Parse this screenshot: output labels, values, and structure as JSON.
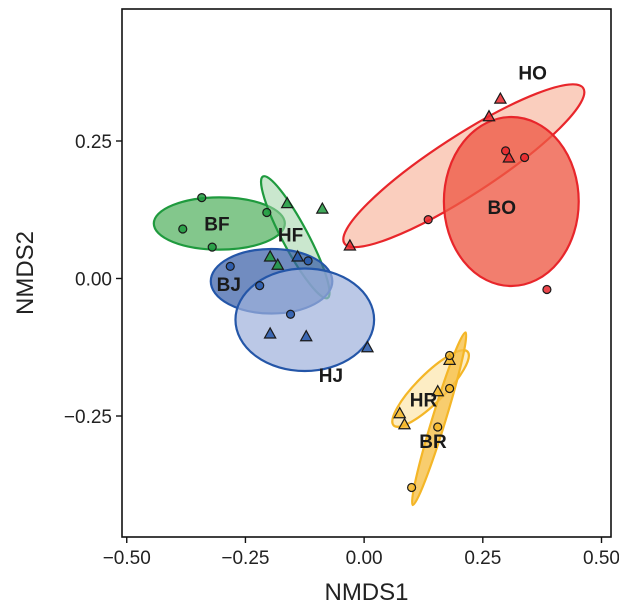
{
  "chart_data": {
    "type": "scatter",
    "xlabel": "NMDS1",
    "ylabel": "NMDS2",
    "xlim": [
      -0.51,
      0.52
    ],
    "ylim": [
      -0.47,
      0.49
    ],
    "x_ticks": [
      -0.5,
      -0.25,
      0.0,
      0.25,
      0.5
    ],
    "x_tick_labels": [
      "−0.50",
      "−0.25",
      "0.00",
      "0.25",
      "0.50"
    ],
    "y_ticks": [
      -0.25,
      0.0,
      0.25
    ],
    "y_tick_labels": [
      "−0.25",
      "0.00",
      "0.25"
    ],
    "grid": false,
    "legend": "none",
    "marker_shapes": {
      "circle": "circle-marker",
      "triangle": "triangle-marker"
    },
    "groups": [
      {
        "id": "BF",
        "label": "BF",
        "fill": "#41a94f",
        "stroke": "#1f9a3e",
        "fill_opacity": 0.65,
        "ellipse": {
          "cx": -0.305,
          "cy": 0.1,
          "rx": 0.138,
          "ry": 0.055,
          "angle_deg": 0
        },
        "label_pos": {
          "x": -0.31,
          "y": 0.1
        },
        "points": [
          {
            "x": -0.342,
            "y": 0.147,
            "shape": "circle"
          },
          {
            "x": -0.382,
            "y": 0.09,
            "shape": "circle"
          },
          {
            "x": -0.32,
            "y": 0.057,
            "shape": "circle"
          },
          {
            "x": -0.205,
            "y": 0.12,
            "shape": "circle"
          }
        ]
      },
      {
        "id": "HF",
        "label": "HF",
        "fill": "#9fd3a6",
        "stroke": "#1f9a3e",
        "fill_opacity": 0.55,
        "ellipse": {
          "cx": -0.145,
          "cy": 0.075,
          "rx": 0.145,
          "ry": 0.027,
          "angle_deg": 62
        },
        "label_pos": {
          "x": -0.155,
          "y": 0.08
        },
        "points": [
          {
            "x": -0.162,
            "y": 0.137,
            "shape": "triangle"
          },
          {
            "x": -0.088,
            "y": 0.127,
            "shape": "triangle"
          },
          {
            "x": -0.198,
            "y": 0.04,
            "shape": "triangle"
          },
          {
            "x": -0.182,
            "y": 0.025,
            "shape": "triangle"
          }
        ]
      },
      {
        "id": "BJ",
        "label": "BJ",
        "fill": "#3a5fa8",
        "stroke": "#2456a8",
        "fill_opacity": 0.72,
        "ellipse": {
          "cx": -0.195,
          "cy": -0.005,
          "rx": 0.128,
          "ry": 0.068,
          "angle_deg": 0
        },
        "label_pos": {
          "x": -0.285,
          "y": -0.01
        },
        "points": [
          {
            "x": -0.282,
            "y": 0.022,
            "shape": "circle"
          },
          {
            "x": -0.22,
            "y": -0.013,
            "shape": "circle"
          },
          {
            "x": -0.118,
            "y": 0.032,
            "shape": "circle"
          },
          {
            "x": -0.155,
            "y": -0.065,
            "shape": "circle"
          }
        ]
      },
      {
        "id": "HJ",
        "label": "HJ",
        "fill": "#9eb0dc",
        "stroke": "#2456a8",
        "fill_opacity": 0.7,
        "ellipse": {
          "cx": -0.125,
          "cy": -0.075,
          "rx": 0.146,
          "ry": 0.108,
          "angle_deg": 0
        },
        "label_pos": {
          "x": -0.07,
          "y": -0.175
        },
        "points": [
          {
            "x": -0.14,
            "y": 0.04,
            "shape": "triangle"
          },
          {
            "x": -0.198,
            "y": -0.1,
            "shape": "triangle"
          },
          {
            "x": -0.122,
            "y": -0.105,
            "shape": "triangle"
          },
          {
            "x": 0.007,
            "y": -0.125,
            "shape": "triangle"
          }
        ]
      },
      {
        "id": "HO",
        "label": "HO",
        "fill": "#f5a588",
        "stroke": "#e8262b",
        "fill_opacity": 0.55,
        "ellipse": {
          "cx": 0.21,
          "cy": 0.205,
          "rx": 0.3,
          "ry": 0.062,
          "angle_deg": -33
        },
        "label_pos": {
          "x": 0.355,
          "y": 0.375
        },
        "points": [
          {
            "x": 0.287,
            "y": 0.327,
            "shape": "triangle"
          },
          {
            "x": 0.263,
            "y": 0.295,
            "shape": "triangle"
          },
          {
            "x": 0.305,
            "y": 0.22,
            "shape": "triangle"
          },
          {
            "x": -0.03,
            "y": 0.06,
            "shape": "triangle"
          }
        ]
      },
      {
        "id": "BO",
        "label": "BO",
        "fill": "#ee5a45",
        "stroke": "#e8262b",
        "fill_opacity": 0.78,
        "ellipse": {
          "cx": 0.31,
          "cy": 0.14,
          "rx": 0.142,
          "ry": 0.178,
          "angle_deg": 0
        },
        "label_pos": {
          "x": 0.29,
          "y": 0.13
        },
        "points": [
          {
            "x": 0.298,
            "y": 0.232,
            "shape": "circle"
          },
          {
            "x": 0.338,
            "y": 0.22,
            "shape": "circle"
          },
          {
            "x": 0.135,
            "y": 0.107,
            "shape": "circle"
          },
          {
            "x": 0.385,
            "y": -0.02,
            "shape": "circle"
          }
        ]
      },
      {
        "id": "HR",
        "label": "HR",
        "fill": "#fde8b5",
        "stroke": "#f4b627",
        "fill_opacity": 0.8,
        "ellipse": {
          "cx": 0.14,
          "cy": -0.2,
          "rx": 0.11,
          "ry": 0.03,
          "angle_deg": -45
        },
        "label_pos": {
          "x": 0.125,
          "y": -0.22
        },
        "points": [
          {
            "x": 0.18,
            "y": -0.148,
            "shape": "triangle"
          },
          {
            "x": 0.155,
            "y": -0.205,
            "shape": "triangle"
          },
          {
            "x": 0.075,
            "y": -0.245,
            "shape": "triangle"
          },
          {
            "x": 0.085,
            "y": -0.265,
            "shape": "triangle"
          }
        ]
      },
      {
        "id": "BR",
        "label": "BR",
        "fill": "#f6c04a",
        "stroke": "#f4b627",
        "fill_opacity": 0.8,
        "ellipse": {
          "cx": 0.158,
          "cy": -0.255,
          "rx": 0.19,
          "ry": 0.014,
          "angle_deg": -73
        },
        "label_pos": {
          "x": 0.145,
          "y": -0.295
        },
        "points": [
          {
            "x": 0.18,
            "y": -0.14,
            "shape": "circle"
          },
          {
            "x": 0.18,
            "y": -0.2,
            "shape": "circle"
          },
          {
            "x": 0.155,
            "y": -0.27,
            "shape": "circle"
          },
          {
            "x": 0.1,
            "y": -0.38,
            "shape": "circle"
          }
        ]
      }
    ]
  }
}
